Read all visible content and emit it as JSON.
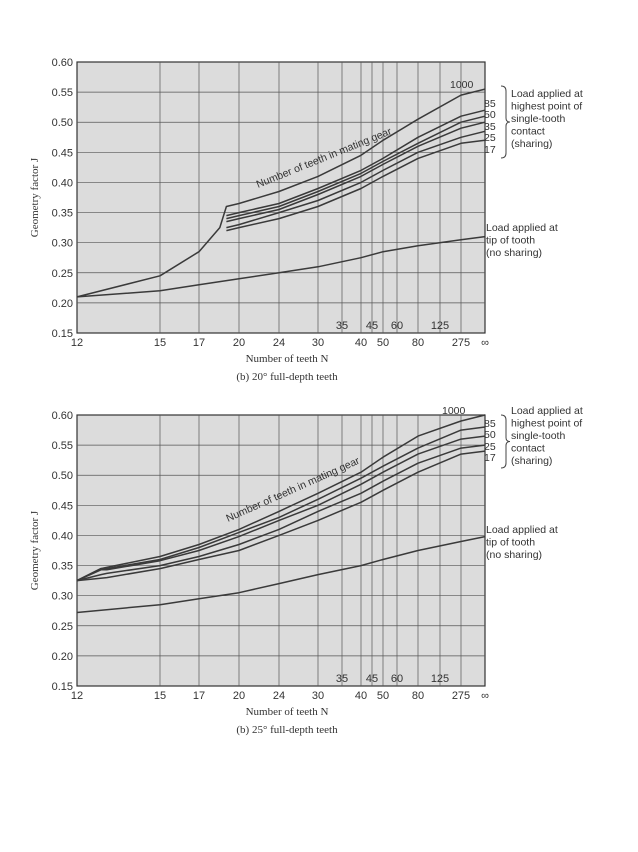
{
  "chart_data": [
    {
      "type": "line",
      "caption": "(b) 20° full-depth teeth",
      "xlabel": "Number of teeth N",
      "ylabel": "Geometry factor J",
      "ylim": [
        0.15,
        0.6
      ],
      "y_ticks": [
        "0.60",
        "0.55",
        "0.50",
        "0.45",
        "0.40",
        "0.35",
        "0.30",
        "0.25",
        "0.20",
        "0.15"
      ],
      "x_ticks": [
        "12",
        "15",
        "17",
        "20",
        "24",
        "30",
        "40",
        "50",
        "80",
        "275",
        "∞"
      ],
      "x_tick_positions": [
        12,
        15,
        17,
        20,
        24,
        30,
        40,
        50,
        80,
        275,
        "inf"
      ],
      "inner_ticks": [
        "35",
        "45",
        "60",
        "125"
      ],
      "inner_tick_positions": [
        35,
        45,
        60,
        125
      ],
      "curve_label": "Number of teeth in mating gear",
      "series_labels": [
        "1000",
        "85",
        "50",
        "35",
        "25",
        "17"
      ],
      "right_annotation_1": [
        "Load applied at",
        "highest point of",
        "single-tooth",
        "contact",
        "(sharing)"
      ],
      "right_annotation_2": [
        "Load applied at",
        "tip of tooth",
        "(no sharing)"
      ],
      "series": [
        {
          "name": "1000",
          "x": [
            12,
            15,
            17,
            18.5,
            19,
            20,
            24,
            30,
            40,
            50,
            80,
            275,
            "inf"
          ],
          "y": [
            0.21,
            0.245,
            0.285,
            0.325,
            0.36,
            0.365,
            0.385,
            0.41,
            0.445,
            0.47,
            0.505,
            0.545,
            0.555
          ]
        },
        {
          "name": "85",
          "x": [
            19,
            20,
            24,
            30,
            40,
            50,
            80,
            275,
            "inf"
          ],
          "y": [
            0.345,
            0.35,
            0.365,
            0.39,
            0.42,
            0.44,
            0.475,
            0.51,
            0.52
          ]
        },
        {
          "name": "50",
          "x": [
            19,
            20,
            24,
            30,
            40,
            50,
            80,
            275,
            "inf"
          ],
          "y": [
            0.34,
            0.345,
            0.36,
            0.385,
            0.415,
            0.435,
            0.465,
            0.5,
            0.51
          ]
        },
        {
          "name": "35",
          "x": [
            19,
            20,
            24,
            30,
            40,
            50,
            80,
            275,
            "inf"
          ],
          "y": [
            0.335,
            0.34,
            0.355,
            0.38,
            0.41,
            0.43,
            0.46,
            0.49,
            0.5
          ]
        },
        {
          "name": "25",
          "x": [
            19,
            20,
            24,
            30,
            40,
            50,
            80,
            275,
            "inf"
          ],
          "y": [
            0.325,
            0.33,
            0.35,
            0.37,
            0.4,
            0.42,
            0.45,
            0.475,
            0.485
          ]
        },
        {
          "name": "17",
          "x": [
            19,
            20,
            24,
            30,
            40,
            50,
            80,
            275,
            "inf"
          ],
          "y": [
            0.32,
            0.325,
            0.34,
            0.36,
            0.39,
            0.41,
            0.44,
            0.465,
            0.47
          ]
        },
        {
          "name": "tip",
          "x": [
            12,
            15,
            17,
            20,
            24,
            30,
            40,
            50,
            80,
            275,
            "inf"
          ],
          "y": [
            0.21,
            0.22,
            0.23,
            0.24,
            0.25,
            0.26,
            0.275,
            0.285,
            0.295,
            0.305,
            0.31
          ]
        }
      ]
    },
    {
      "type": "line",
      "caption": "(b) 25° full-depth teeth",
      "xlabel": "Number of teeth N",
      "ylabel": "Geometry factor J",
      "ylim": [
        0.15,
        0.6
      ],
      "y_ticks": [
        "0.60",
        "0.55",
        "0.50",
        "0.45",
        "0.40",
        "0.35",
        "0.30",
        "0.25",
        "0.20",
        "0.15"
      ],
      "x_ticks": [
        "12",
        "15",
        "17",
        "20",
        "24",
        "30",
        "40",
        "50",
        "80",
        "275",
        "∞"
      ],
      "x_tick_positions": [
        12,
        15,
        17,
        20,
        24,
        30,
        40,
        50,
        80,
        275,
        "inf"
      ],
      "inner_ticks": [
        "35",
        "45",
        "60",
        "125"
      ],
      "inner_tick_positions": [
        35,
        45,
        60,
        125
      ],
      "curve_label": "Number of teeth in mating gear",
      "series_labels": [
        "1000",
        "85",
        "50",
        "25",
        "17"
      ],
      "right_annotation_1": [
        "Load applied at",
        "highest point of",
        "single-tooth",
        "contact",
        "(sharing)"
      ],
      "right_annotation_2": [
        "Load applied at",
        "tip of tooth",
        "(no sharing)"
      ],
      "series": [
        {
          "name": "1000",
          "x": [
            12,
            12.8,
            13,
            15,
            17,
            20,
            24,
            30,
            40,
            50,
            80,
            275,
            "inf"
          ],
          "y": [
            0.325,
            0.345,
            0.347,
            0.365,
            0.385,
            0.41,
            0.44,
            0.47,
            0.505,
            0.53,
            0.565,
            0.59,
            0.6
          ]
        },
        {
          "name": "85",
          "x": [
            12,
            12.8,
            13,
            15,
            17,
            20,
            24,
            30,
            40,
            50,
            80,
            275,
            "inf"
          ],
          "y": [
            0.325,
            0.345,
            0.345,
            0.36,
            0.38,
            0.405,
            0.43,
            0.46,
            0.495,
            0.515,
            0.545,
            0.575,
            0.58
          ]
        },
        {
          "name": "50",
          "x": [
            12,
            12.8,
            13,
            15,
            17,
            20,
            24,
            30,
            40,
            50,
            80,
            275,
            "inf"
          ],
          "y": [
            0.325,
            0.343,
            0.343,
            0.358,
            0.375,
            0.398,
            0.425,
            0.45,
            0.485,
            0.505,
            0.535,
            0.56,
            0.565
          ]
        },
        {
          "name": "25",
          "x": [
            12,
            12.8,
            13,
            15,
            17,
            20,
            24,
            30,
            40,
            50,
            80,
            275,
            "inf"
          ],
          "y": [
            0.325,
            0.335,
            0.337,
            0.35,
            0.365,
            0.385,
            0.41,
            0.44,
            0.47,
            0.49,
            0.52,
            0.545,
            0.55
          ]
        },
        {
          "name": "17",
          "x": [
            12,
            13,
            15,
            17,
            20,
            24,
            30,
            40,
            50,
            80,
            275,
            "inf"
          ],
          "y": [
            0.325,
            0.33,
            0.345,
            0.36,
            0.375,
            0.4,
            0.425,
            0.455,
            0.475,
            0.505,
            0.535,
            0.54
          ]
        },
        {
          "name": "tip",
          "x": [
            12,
            15,
            17,
            20,
            24,
            30,
            40,
            50,
            80,
            275,
            "inf"
          ],
          "y": [
            0.272,
            0.285,
            0.295,
            0.305,
            0.32,
            0.335,
            0.35,
            0.36,
            0.375,
            0.39,
            0.398
          ]
        }
      ]
    }
  ]
}
